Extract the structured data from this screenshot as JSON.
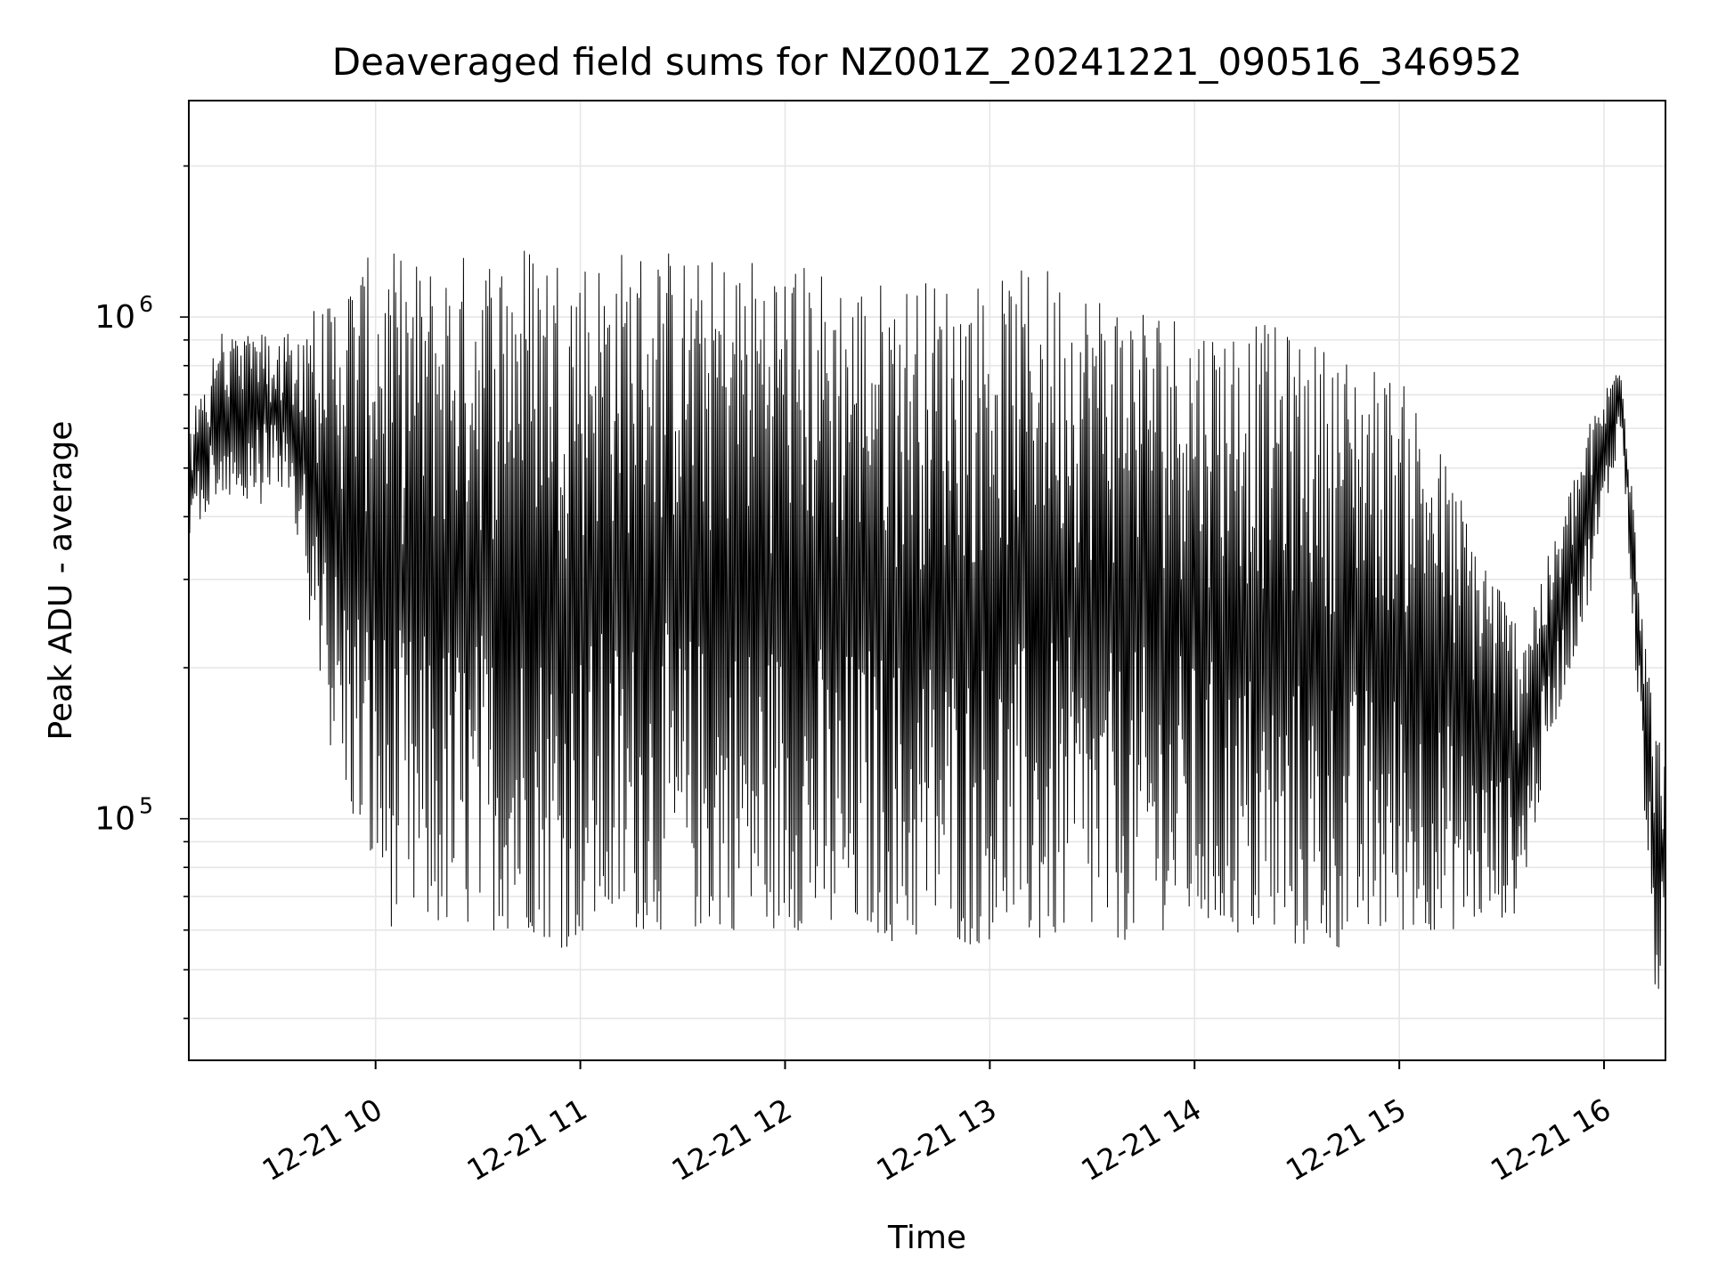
{
  "chart_data": {
    "type": "line",
    "title": "Deaveraged field sums for NZ001Z_20241221_090516_346952",
    "xlabel": "Time",
    "ylabel": "Peak ADU - average",
    "y_scale": "log",
    "ylim": [
      33000,
      2700000
    ],
    "xlim": [
      "2024-12-21 09:05:16",
      "2024-12-21 16:18:00"
    ],
    "x_tick_labels": [
      "12-21 10",
      "12-21 11",
      "12-21 12",
      "12-21 13",
      "12-21 14",
      "12-21 15",
      "12-21 16"
    ],
    "x_tick_times": [
      "2024-12-21 10:00",
      "2024-12-21 11:00",
      "2024-12-21 12:00",
      "2024-12-21 13:00",
      "2024-12-21 14:00",
      "2024-12-21 15:00",
      "2024-12-21 16:00"
    ],
    "y_tick_labels": [
      {
        "base": "10",
        "exp": "5",
        "value": 100000
      },
      {
        "base": "10",
        "exp": "6",
        "value": 1000000
      }
    ],
    "grid": true,
    "line_color": "#000000",
    "grid_color": "#e6e6e6",
    "series": [
      {
        "x": [
          "2024-12-21 09:05",
          "2024-12-21 09:15",
          "2024-12-21 09:25",
          "2024-12-21 09:35",
          "2024-12-21 09:45",
          "2024-12-21 09:55",
          "2024-12-21 10:05",
          "2024-12-21 10:15",
          "2024-12-21 10:25",
          "2024-12-21 10:35",
          "2024-12-21 10:45",
          "2024-12-21 10:55",
          "2024-12-21 11:05",
          "2024-12-21 11:15",
          "2024-12-21 11:25",
          "2024-12-21 11:35",
          "2024-12-21 11:45",
          "2024-12-21 11:55",
          "2024-12-21 12:05",
          "2024-12-21 12:15",
          "2024-12-21 12:25",
          "2024-12-21 12:35",
          "2024-12-21 12:45",
          "2024-12-21 12:55",
          "2024-12-21 13:05",
          "2024-12-21 13:15",
          "2024-12-21 13:25",
          "2024-12-21 13:35",
          "2024-12-21 13:45",
          "2024-12-21 13:55",
          "2024-12-21 14:05",
          "2024-12-21 14:15",
          "2024-12-21 14:25",
          "2024-12-21 14:35",
          "2024-12-21 14:45",
          "2024-12-21 14:55",
          "2024-12-21 15:05",
          "2024-12-21 15:15",
          "2024-12-21 15:25",
          "2024-12-21 15:35",
          "2024-12-21 15:45",
          "2024-12-21 15:55",
          "2024-12-21 16:05",
          "2024-12-21 16:15"
        ],
        "lo": [
          350000,
          450000,
          420000,
          450000,
          150000,
          90000,
          60000,
          60000,
          60000,
          60000,
          60000,
          55000,
          60000,
          60000,
          60000,
          60000,
          60000,
          60000,
          60000,
          55000,
          60000,
          55000,
          60000,
          55000,
          60000,
          55000,
          60000,
          55000,
          60000,
          60000,
          60000,
          58000,
          55000,
          55000,
          55000,
          58000,
          60000,
          60000,
          62000,
          65000,
          150000,
          260000,
          600000,
          45000
        ],
        "hi": [
          600000,
          950000,
          950000,
          950000,
          1100000,
          1300000,
          1350000,
          1300000,
          1350000,
          1400000,
          1450000,
          1400000,
          1350000,
          1400000,
          1400000,
          1300000,
          1350000,
          1350000,
          1300000,
          1250000,
          1200000,
          1200000,
          1200000,
          1200000,
          1200000,
          1300000,
          1200000,
          1150000,
          1100000,
          1050000,
          1000000,
          1000000,
          950000,
          900000,
          850000,
          800000,
          700000,
          500000,
          350000,
          250000,
          350000,
          600000,
          850000,
          150000
        ]
      }
    ]
  }
}
